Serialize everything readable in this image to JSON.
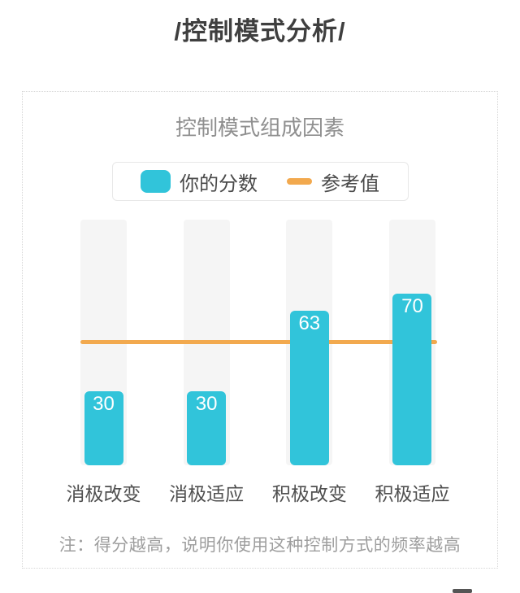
{
  "header": {
    "title": "/控制模式分析/"
  },
  "note": {
    "text": "注：得分越高，说明你使用这种控制方式的频率越高"
  },
  "colors": {
    "bar": "#31c4da",
    "reference_line": "#f2a94e",
    "track": "#f5f5f5",
    "value_label": "#ffffff"
  },
  "chart_data": {
    "type": "bar",
    "title": "控制模式组成因素",
    "categories": [
      "消极改变",
      "消极适应",
      "积极改变",
      "积极适应"
    ],
    "series": [
      {
        "name": "你的分数",
        "type": "bar",
        "values": [
          30,
          30,
          63,
          70
        ],
        "color": "#31c4da"
      },
      {
        "name": "参考值",
        "type": "reference-line",
        "value": 50,
        "color": "#f2a94e"
      }
    ],
    "ylim": [
      0,
      100
    ],
    "grid": false,
    "legend_position": "top",
    "value_labels": "inside-top",
    "track_background": true
  }
}
